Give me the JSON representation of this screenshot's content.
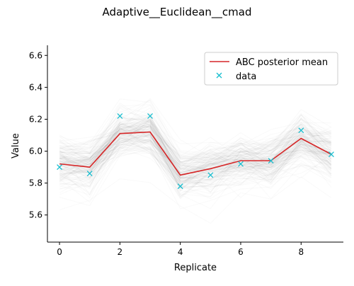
{
  "chart_data": {
    "type": "line",
    "title": "Adaptive__Euclidean__cmad",
    "xlabel": "Replicate",
    "ylabel": "Value",
    "xlim": [
      -0.4,
      9.4
    ],
    "ylim": [
      5.43,
      6.65
    ],
    "x_ticks": [
      0,
      2,
      4,
      6,
      8
    ],
    "y_ticks": [
      5.6,
      5.8,
      6.0,
      6.2,
      6.4,
      6.6
    ],
    "x": [
      0,
      1,
      2,
      3,
      4,
      5,
      6,
      7,
      8,
      9
    ],
    "series": [
      {
        "name": "ABC posterior mean",
        "kind": "line",
        "color": "#d62728",
        "values": [
          5.92,
          5.9,
          6.11,
          6.12,
          5.85,
          5.89,
          5.94,
          5.94,
          6.08,
          5.98
        ]
      },
      {
        "name": "data",
        "kind": "scatter",
        "marker": "x",
        "color": "#17becf",
        "values": [
          5.9,
          5.86,
          6.22,
          6.22,
          5.78,
          5.85,
          5.92,
          5.94,
          6.13,
          5.98
        ]
      }
    ],
    "background_samples": {
      "color": "#000000",
      "count": 160,
      "spread": 0.1
    },
    "legend_position": "top-right",
    "grid": false
  }
}
